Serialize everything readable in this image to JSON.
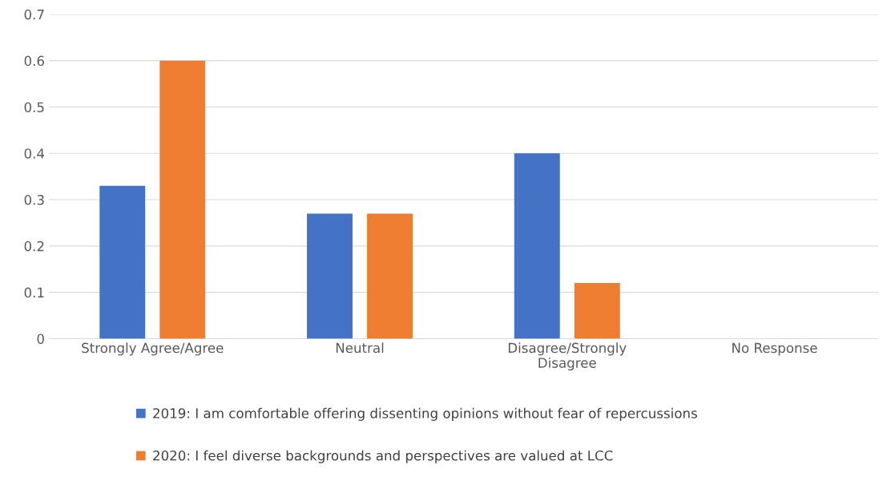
{
  "chart_data": {
    "type": "bar",
    "categories": [
      "Strongly Agree/Agree",
      "Neutral",
      "Disagree/Strongly\nDisagree",
      "No Response"
    ],
    "series": [
      {
        "name": "2019: I am comfortable offering dissenting opinions without fear of repercussions",
        "color": "#4472c4",
        "values": [
          0.33,
          0.27,
          0.4,
          0
        ]
      },
      {
        "name": "2020: I feel diverse backgrounds and perspectives are valued at LCC",
        "color": "#ed7d31",
        "values": [
          0.6,
          0.27,
          0.12,
          0
        ]
      }
    ],
    "ylim": [
      0,
      0.7
    ],
    "yticks": [
      0,
      0.1,
      0.2,
      0.3,
      0.4,
      0.5,
      0.6,
      0.7
    ],
    "grid": "y",
    "legend": "bottom"
  }
}
